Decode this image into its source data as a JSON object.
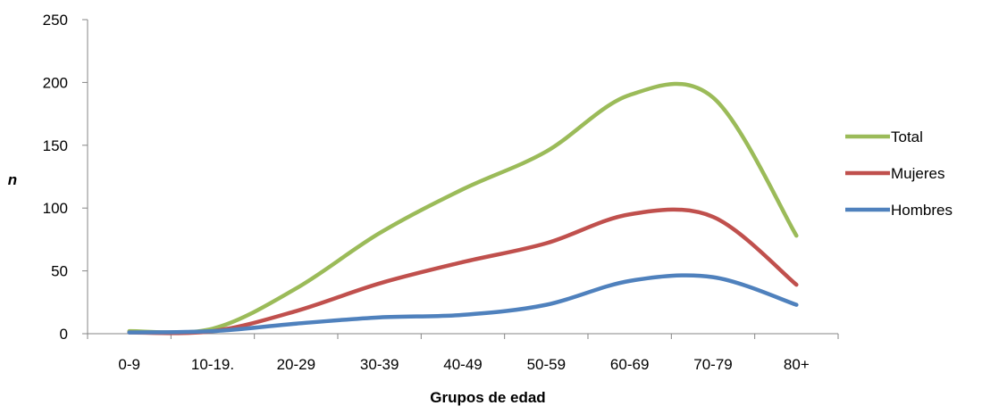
{
  "chart_data": {
    "type": "line",
    "title": "",
    "xlabel": "Grupos de edad",
    "ylabel": "n",
    "categories": [
      "0-9",
      "10-19.",
      "20-29",
      "30-39",
      "40-49",
      "50-59",
      "60-69",
      "70-79",
      "80+"
    ],
    "ylim": [
      0,
      250
    ],
    "yticks": [
      0,
      50,
      100,
      150,
      200,
      250
    ],
    "grid": false,
    "legend_position": "right",
    "series": [
      {
        "name": "Total",
        "color": "#9BBB59",
        "values": [
          2,
          4,
          36,
          80,
          115,
          145,
          190,
          188,
          78
        ]
      },
      {
        "name": "Mujeres",
        "color": "#C0504D",
        "values": [
          1,
          2,
          18,
          40,
          57,
          72,
          95,
          93,
          39
        ]
      },
      {
        "name": "Hombres",
        "color": "#4F81BD",
        "values": [
          1,
          2,
          8,
          13,
          15,
          23,
          42,
          45,
          23
        ]
      }
    ]
  }
}
